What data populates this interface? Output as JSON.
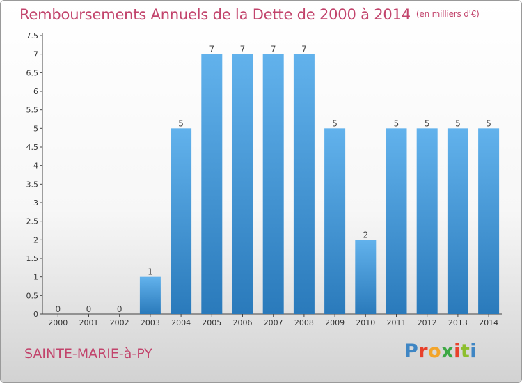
{
  "title": "Remboursements Annuels de la Dette de 2000 à 2014",
  "unit": "(en milliers d'€)",
  "commune": "SAINTE-MARIE-à-PY",
  "logo": {
    "letters": [
      "P",
      "r",
      "o",
      "x",
      "i",
      "t",
      "i"
    ]
  },
  "colors": {
    "bar_top": "#62b2ec",
    "bar_bottom": "#2a7abb",
    "title": "#c2446c",
    "axis": "#444444"
  },
  "chart_data": {
    "type": "bar",
    "categories": [
      "2000",
      "2001",
      "2002",
      "2003",
      "2004",
      "2005",
      "2006",
      "2007",
      "2008",
      "2009",
      "2010",
      "2011",
      "2012",
      "2013",
      "2014"
    ],
    "values": [
      0,
      0,
      0,
      1,
      5,
      7,
      7,
      7,
      7,
      5,
      2,
      5,
      5,
      5,
      5
    ],
    "yticks": [
      "0",
      "0.5",
      "1",
      "1.5",
      "2",
      "2.5",
      "3",
      "3.5",
      "4",
      "4.5",
      "5",
      "5.5",
      "6",
      "6.5",
      "7",
      "7.5"
    ],
    "ylim": [
      0,
      7.5
    ],
    "grid": false,
    "legend": "none"
  }
}
